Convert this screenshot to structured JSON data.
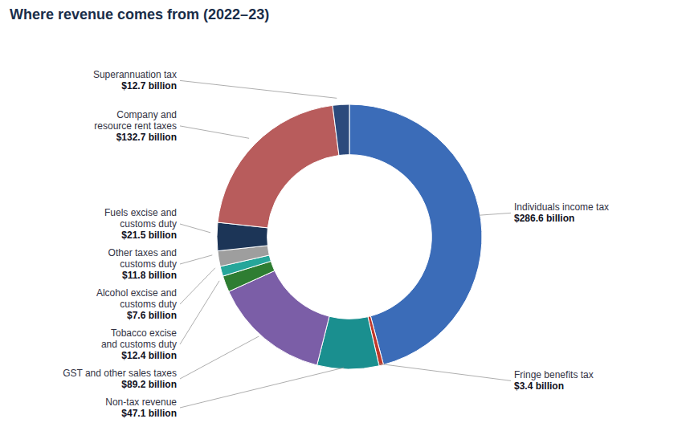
{
  "chart_data": {
    "type": "pie",
    "title": "Where revenue comes from (2022–23)",
    "categories": [
      "Individuals income tax",
      "Fringe benefits tax",
      "Non-tax revenue",
      "GST and other sales taxes",
      "Tobacco excise\nand customs duty",
      "Alcohol excise and\ncustoms duty",
      "Other taxes and\ncustoms duty",
      "Fuels excise and\ncustoms duty",
      "Company and\nresource rent taxes",
      "Superannuation tax"
    ],
    "values": [
      286.6,
      3.4,
      47.1,
      89.2,
      12.4,
      7.6,
      11.8,
      21.5,
      132.7,
      12.7
    ],
    "value_labels": [
      "$286.6 billion",
      "$3.4 billion",
      "$47.1 billion",
      "$89.2 billion",
      "$12.4 billion",
      "$7.6 billion",
      "$11.8 billion",
      "$21.5 billion",
      "$132.7 billion",
      "$12.7 billion"
    ],
    "colors": [
      "#3b6cb8",
      "#c0392b",
      "#1a8f8f",
      "#7b5ea7",
      "#2e7d32",
      "#26a69a",
      "#9e9e9e",
      "#1c3557",
      "#b85c5c",
      "#2c4a7c"
    ],
    "data_labels": true
  }
}
